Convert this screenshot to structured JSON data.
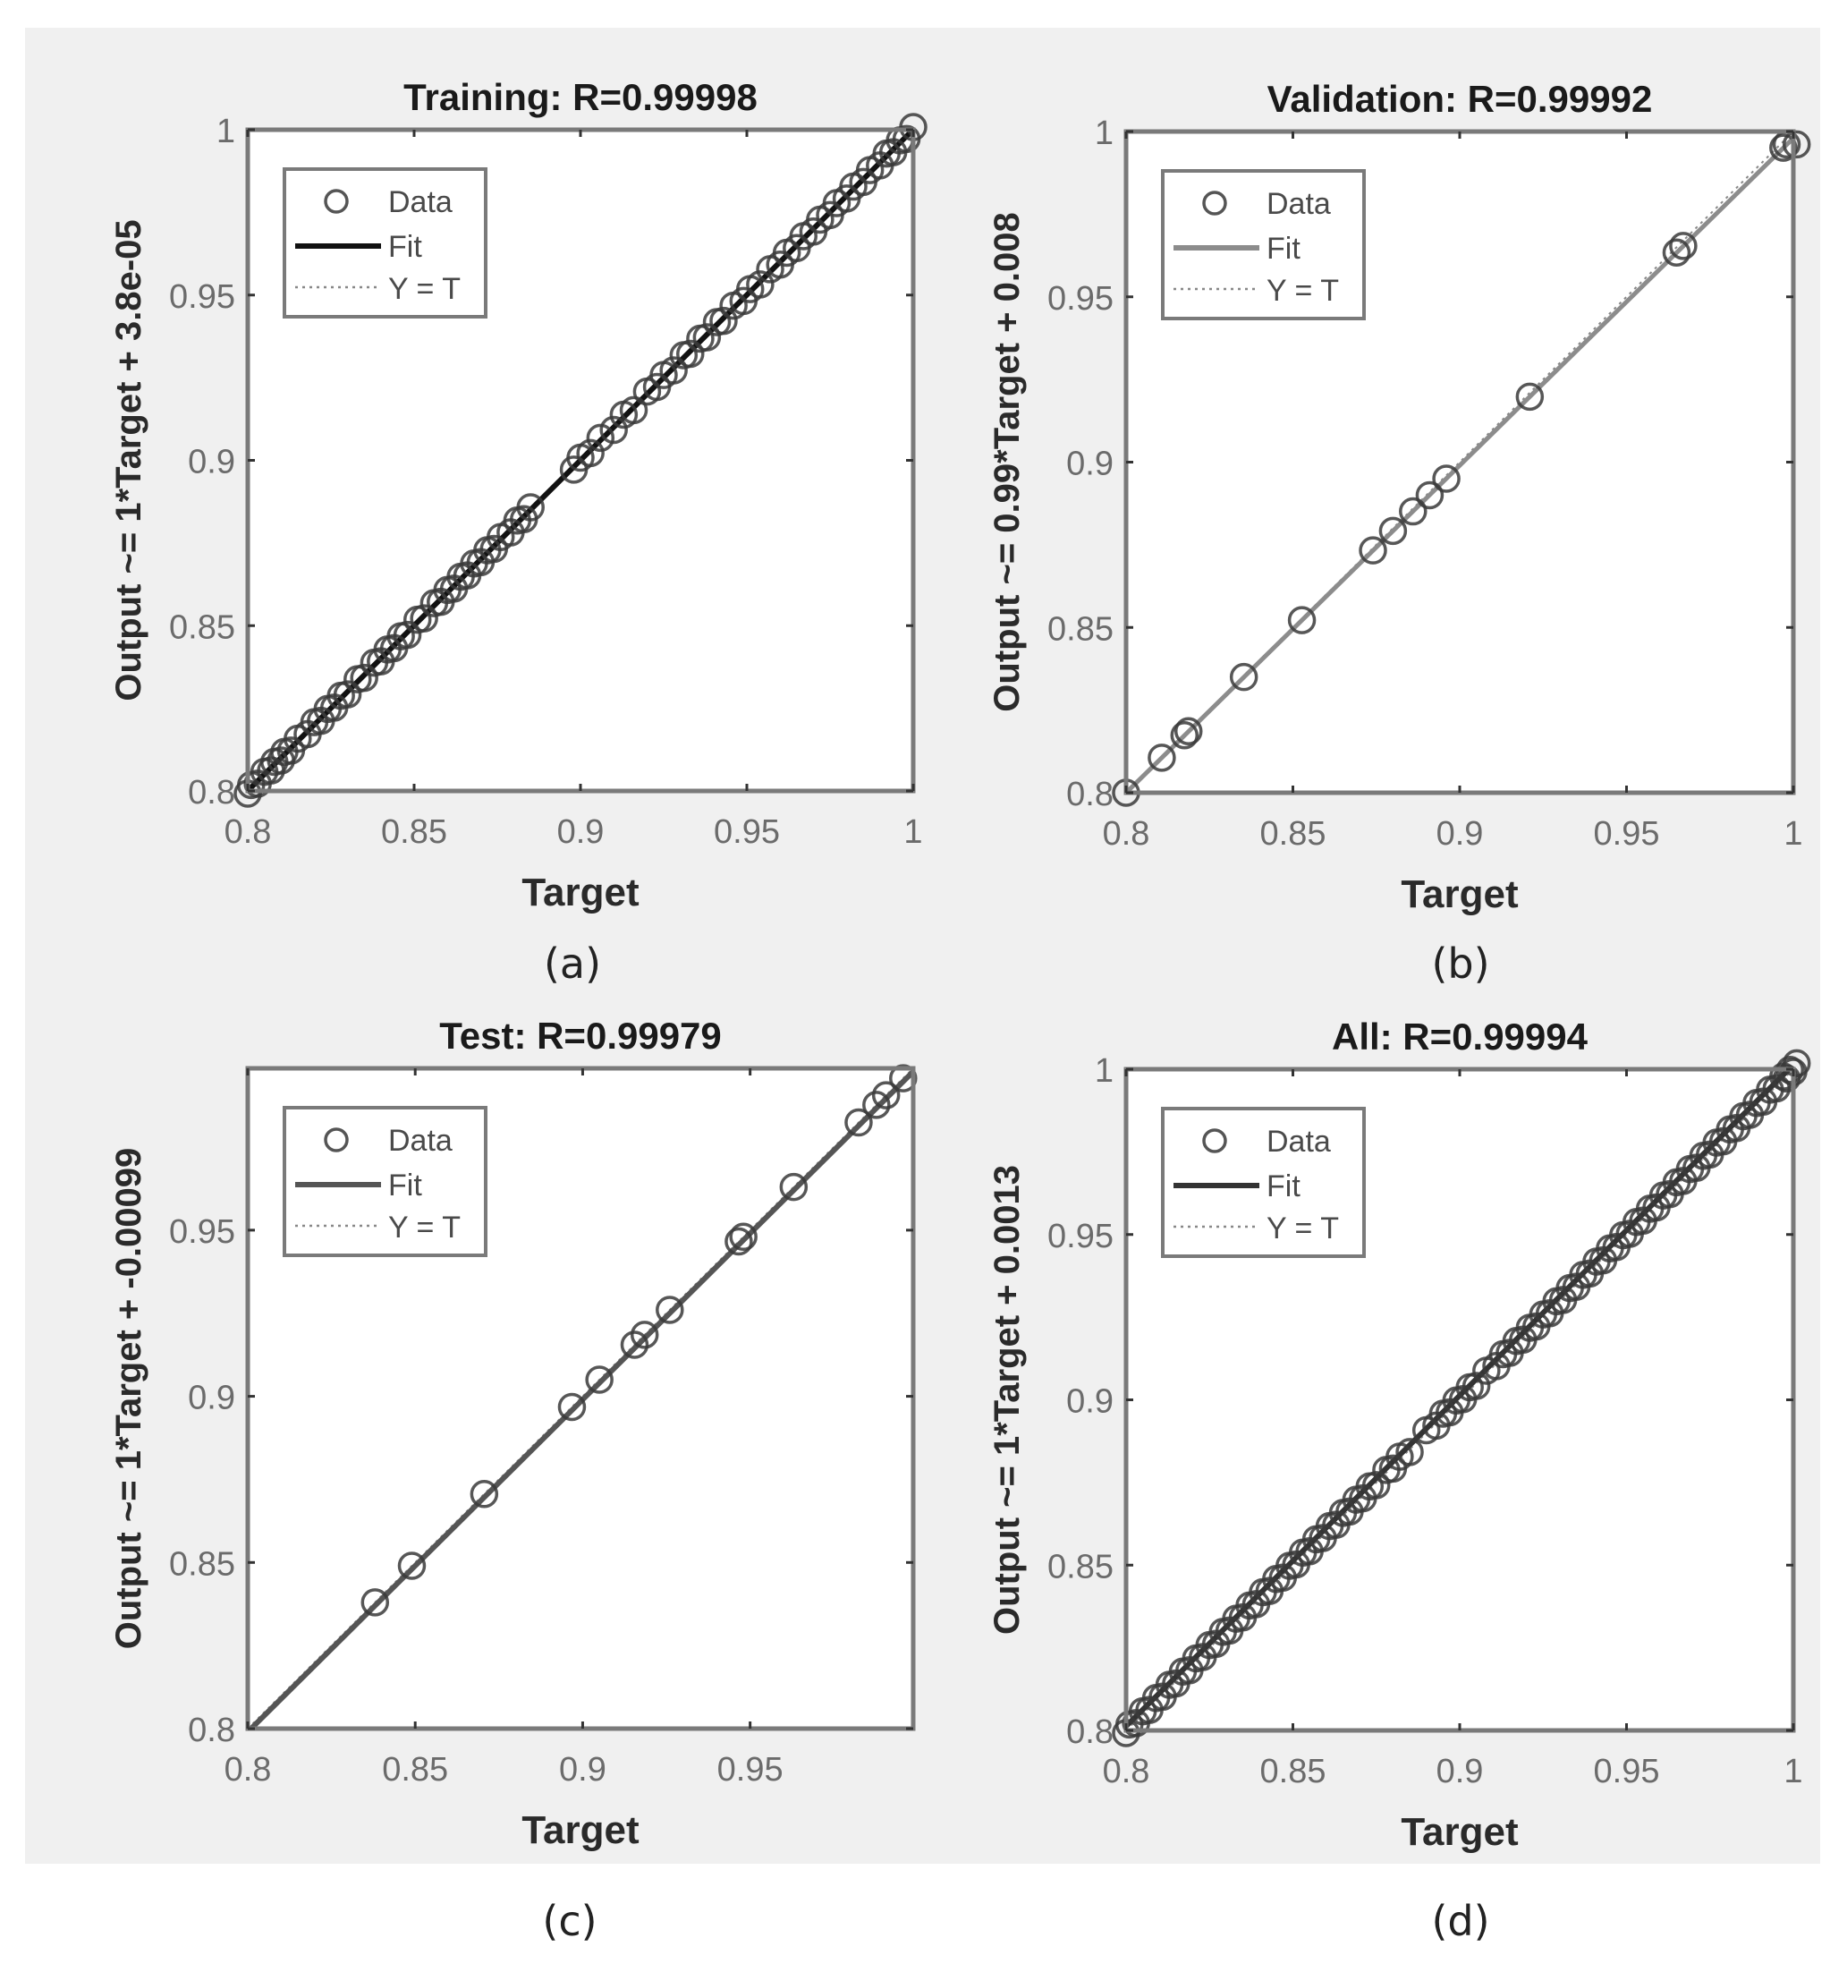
{
  "figure": {
    "background": "#f0f0f0",
    "panel_labels": [
      "(a)",
      "(b)",
      "(c)",
      "(d)"
    ]
  },
  "chart_data": [
    {
      "id": "a",
      "type": "scatter",
      "title": "Training: R=0.99998",
      "xlabel": "Target",
      "ylabel": "Output ~= 1*Target + 3.8e-05",
      "xlim": [
        0.8,
        1.0
      ],
      "ylim": [
        0.8,
        1.0
      ],
      "xticks": [
        0.8,
        0.85,
        0.9,
        0.95,
        1
      ],
      "xtick_labels": [
        "0.8",
        "0.85",
        "0.9",
        "0.95",
        "1"
      ],
      "yticks": [
        0.8,
        0.85,
        0.9,
        0.95,
        1
      ],
      "ytick_labels": [
        "0.8",
        "0.85",
        "0.9",
        "0.95",
        "1"
      ],
      "fit": {
        "slope": 1,
        "intercept": 3.8e-05,
        "color": "#111111"
      },
      "legend": {
        "entries": [
          "Data",
          "Fit",
          "Y = T"
        ],
        "position": "northwest"
      },
      "grid": false,
      "series": [
        {
          "name": "Data",
          "marker": "circle",
          "points_xy_equal": true,
          "x": [
            0.8,
            0.801,
            0.803,
            0.805,
            0.807,
            0.808,
            0.81,
            0.811,
            0.813,
            0.815,
            0.818,
            0.82,
            0.822,
            0.824,
            0.826,
            0.828,
            0.83,
            0.833,
            0.835,
            0.838,
            0.84,
            0.842,
            0.844,
            0.846,
            0.848,
            0.851,
            0.853,
            0.856,
            0.858,
            0.86,
            0.862,
            0.864,
            0.866,
            0.868,
            0.87,
            0.872,
            0.874,
            0.876,
            0.879,
            0.881,
            0.883,
            0.885,
            0.898,
            0.9,
            0.903,
            0.906,
            0.91,
            0.913,
            0.916,
            0.92,
            0.923,
            0.925,
            0.928,
            0.931,
            0.933,
            0.936,
            0.938,
            0.941,
            0.943,
            0.946,
            0.949,
            0.951,
            0.954,
            0.957,
            0.96,
            0.962,
            0.965,
            0.967,
            0.97,
            0.972,
            0.975,
            0.977,
            0.98,
            0.982,
            0.985,
            0.987,
            0.99,
            0.992,
            0.994,
            0.996,
            0.998,
            1.0
          ]
        }
      ]
    },
    {
      "id": "b",
      "type": "scatter",
      "title": "Validation: R=0.99992",
      "xlabel": "Target",
      "ylabel": "Output ~= 0.99*Target + 0.008",
      "xlim": [
        0.8,
        1.0
      ],
      "ylim": [
        0.8,
        1.0
      ],
      "xticks": [
        0.8,
        0.85,
        0.9,
        0.95,
        1
      ],
      "xtick_labels": [
        "0.8",
        "0.85",
        "0.9",
        "0.95",
        "1"
      ],
      "yticks": [
        0.8,
        0.85,
        0.9,
        0.95,
        1
      ],
      "ytick_labels": [
        "0.8",
        "0.85",
        "0.9",
        "0.95",
        "1"
      ],
      "fit": {
        "slope": 0.99,
        "intercept": 0.008,
        "color": "#8c8c8c"
      },
      "legend": {
        "entries": [
          "Data",
          "Fit",
          "Y = T"
        ],
        "position": "northwest"
      },
      "grid": false,
      "series": [
        {
          "name": "Data",
          "marker": "circle",
          "x": [
            0.8,
            0.8107,
            0.8175,
            0.8187,
            0.8353,
            0.8527,
            0.874,
            0.88,
            0.886,
            0.891,
            0.896,
            0.921,
            0.965,
            0.967,
            0.997,
            0.998,
            1.001
          ],
          "y": [
            0.8,
            0.8106,
            0.8174,
            0.8186,
            0.835,
            0.8522,
            0.8733,
            0.8792,
            0.8851,
            0.89,
            0.895,
            0.9198,
            0.9634,
            0.9654,
            0.9951,
            0.9961,
            0.9961
          ]
        }
      ]
    },
    {
      "id": "c",
      "type": "scatter",
      "title": "Test: R=0.99979",
      "xlabel": "Target",
      "ylabel": "Output ~= 1*Target + -0.00099",
      "xlim": [
        0.8,
        0.9987
      ],
      "ylim": [
        0.8,
        0.9987
      ],
      "xticks": [
        0.8,
        0.85,
        0.9,
        0.95
      ],
      "xtick_labels": [
        "0.8",
        "0.85",
        "0.9",
        "0.95"
      ],
      "yticks": [
        0.8,
        0.85,
        0.9,
        0.95
      ],
      "ytick_labels": [
        "0.8",
        "0.85",
        "0.9",
        "0.95"
      ],
      "fit": {
        "slope": 1,
        "intercept": -0.00099,
        "color": "#555555"
      },
      "legend": {
        "entries": [
          "Data",
          "Fit",
          "Y = T"
        ],
        "position": "northwest"
      },
      "grid": false,
      "series": [
        {
          "name": "Data",
          "marker": "circle",
          "points_xy_equal": true,
          "x": [
            0.838,
            0.849,
            0.8706,
            0.8968,
            0.905,
            0.9155,
            0.9185,
            0.926,
            0.9466,
            0.948,
            0.963,
            0.9824,
            0.9877,
            0.9906,
            0.9957
          ]
        }
      ]
    },
    {
      "id": "d",
      "type": "scatter",
      "title": "All: R=0.99994",
      "xlabel": "Target",
      "ylabel": "Output ~= 1*Target + 0.0013",
      "xlim": [
        0.8,
        1.0
      ],
      "ylim": [
        0.8,
        1.0
      ],
      "xticks": [
        0.8,
        0.85,
        0.9,
        0.95,
        1
      ],
      "xtick_labels": [
        "0.8",
        "0.85",
        "0.9",
        "0.95",
        "1"
      ],
      "yticks": [
        0.8,
        0.85,
        0.9,
        0.95,
        1
      ],
      "ytick_labels": [
        "0.8",
        "0.85",
        "0.9",
        "0.95",
        "1"
      ],
      "fit": {
        "slope": 1,
        "intercept": 0.0013,
        "color": "#333333"
      },
      "legend": {
        "entries": [
          "Data",
          "Fit",
          "Y = T"
        ],
        "position": "northwest"
      },
      "grid": false,
      "series": [
        {
          "name": "Data",
          "marker": "circle",
          "points_xy_equal": true,
          "x": [
            0.8,
            0.801,
            0.803,
            0.805,
            0.807,
            0.809,
            0.811,
            0.813,
            0.815,
            0.817,
            0.819,
            0.821,
            0.823,
            0.825,
            0.827,
            0.829,
            0.831,
            0.833,
            0.835,
            0.837,
            0.839,
            0.841,
            0.843,
            0.845,
            0.847,
            0.849,
            0.851,
            0.853,
            0.855,
            0.857,
            0.859,
            0.861,
            0.863,
            0.865,
            0.867,
            0.869,
            0.871,
            0.873,
            0.875,
            0.878,
            0.88,
            0.882,
            0.885,
            0.89,
            0.893,
            0.895,
            0.897,
            0.899,
            0.901,
            0.903,
            0.905,
            0.908,
            0.911,
            0.913,
            0.915,
            0.917,
            0.919,
            0.921,
            0.923,
            0.925,
            0.927,
            0.929,
            0.931,
            0.933,
            0.935,
            0.937,
            0.939,
            0.941,
            0.943,
            0.945,
            0.947,
            0.949,
            0.951,
            0.953,
            0.955,
            0.957,
            0.959,
            0.961,
            0.963,
            0.965,
            0.967,
            0.969,
            0.971,
            0.973,
            0.975,
            0.977,
            0.979,
            0.981,
            0.983,
            0.985,
            0.987,
            0.989,
            0.991,
            0.993,
            0.995,
            0.997,
            0.998,
            0.999,
            1.0,
            1.001
          ]
        }
      ]
    }
  ]
}
